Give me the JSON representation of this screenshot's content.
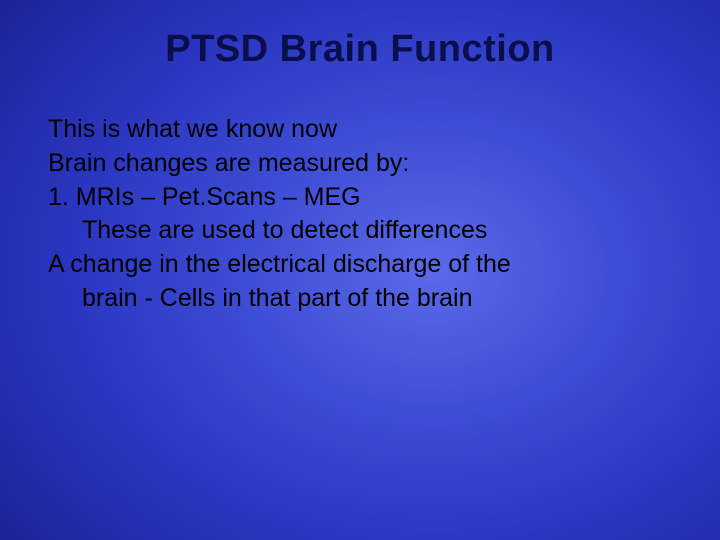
{
  "slide": {
    "title": "PTSD Brain Function",
    "lines": [
      "This is what we know now",
      "Brain changes are measured by:",
      "1. MRIs – Pet.Scans – MEG",
      "These are used to detect differences",
      "A change in the electrical discharge of the",
      "brain - Cells in that part of the brain"
    ],
    "title_color": "#0a0e4a",
    "body_color": "#000000",
    "title_fontsize": 38,
    "body_fontsize": 25,
    "background_gradient": {
      "type": "radial",
      "center_color": "#5a6ae8",
      "outer_color": "#080a40"
    }
  }
}
